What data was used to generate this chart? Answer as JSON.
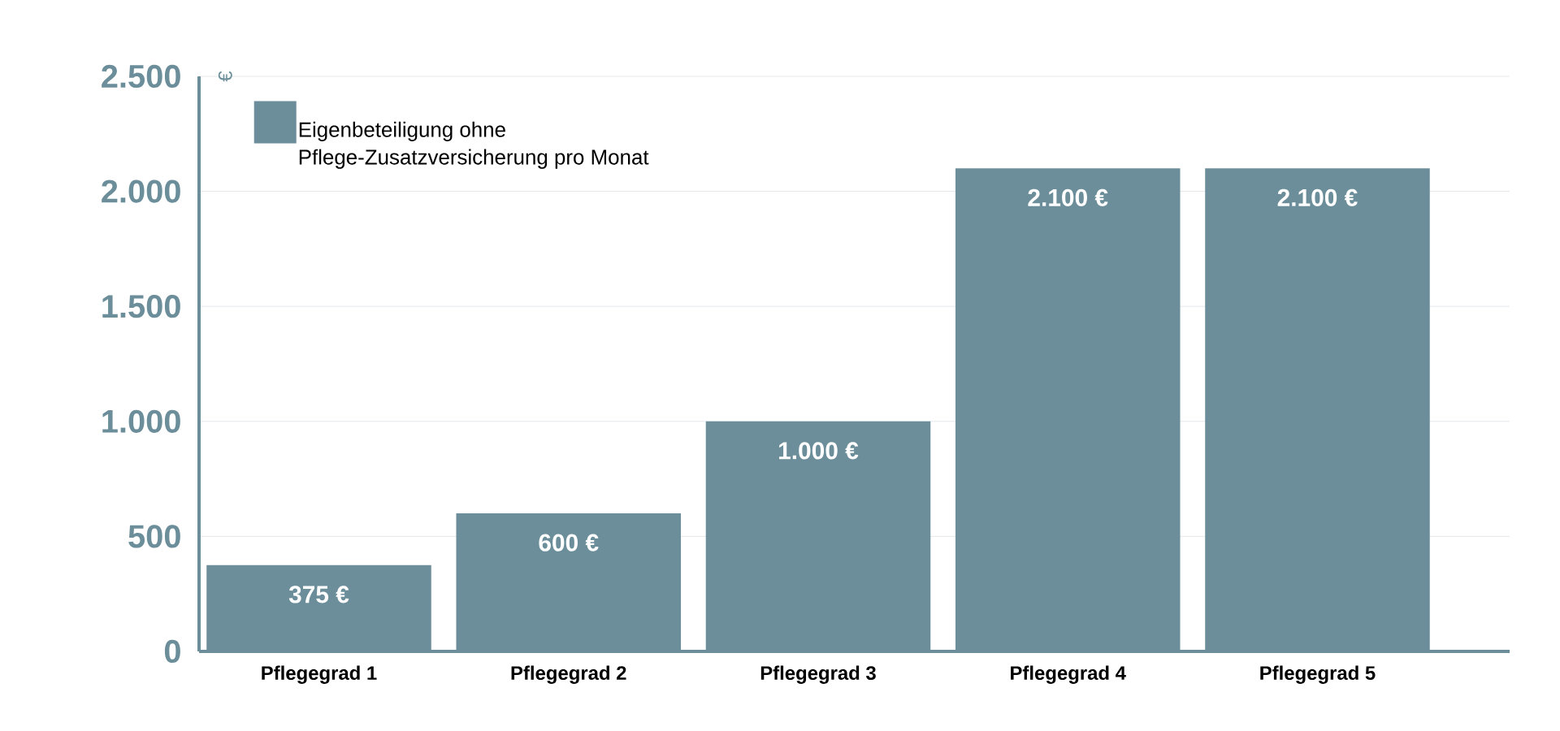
{
  "chart_data": {
    "type": "bar",
    "ylabel": "€",
    "categories": [
      "Pflegegrad 1",
      "Pflegegrad 2",
      "Pflegegrad 3",
      "Pflegegrad 4",
      "Pflegegrad 5"
    ],
    "series": [
      {
        "name": "Eigenbeteiligung ohne Pflege-Zusatzversicherung pro Monat",
        "color": "#6b8e9a",
        "values": [
          375,
          600,
          1000,
          2100,
          2100
        ],
        "value_labels": [
          "375 €",
          "600 €",
          "1.000 €",
          "2.100 €",
          "2.100 €"
        ]
      }
    ],
    "ylim": [
      0,
      2500
    ],
    "yticks": [
      0,
      500,
      {
        "value": 1000,
        "label": "1.000"
      },
      {
        "value": 1500,
        "label": "1.500"
      },
      {
        "value": 2000,
        "label": "2.000"
      },
      {
        "value": 2500,
        "label": "2.500"
      }
    ],
    "grid": "y",
    "legend": "top left"
  }
}
